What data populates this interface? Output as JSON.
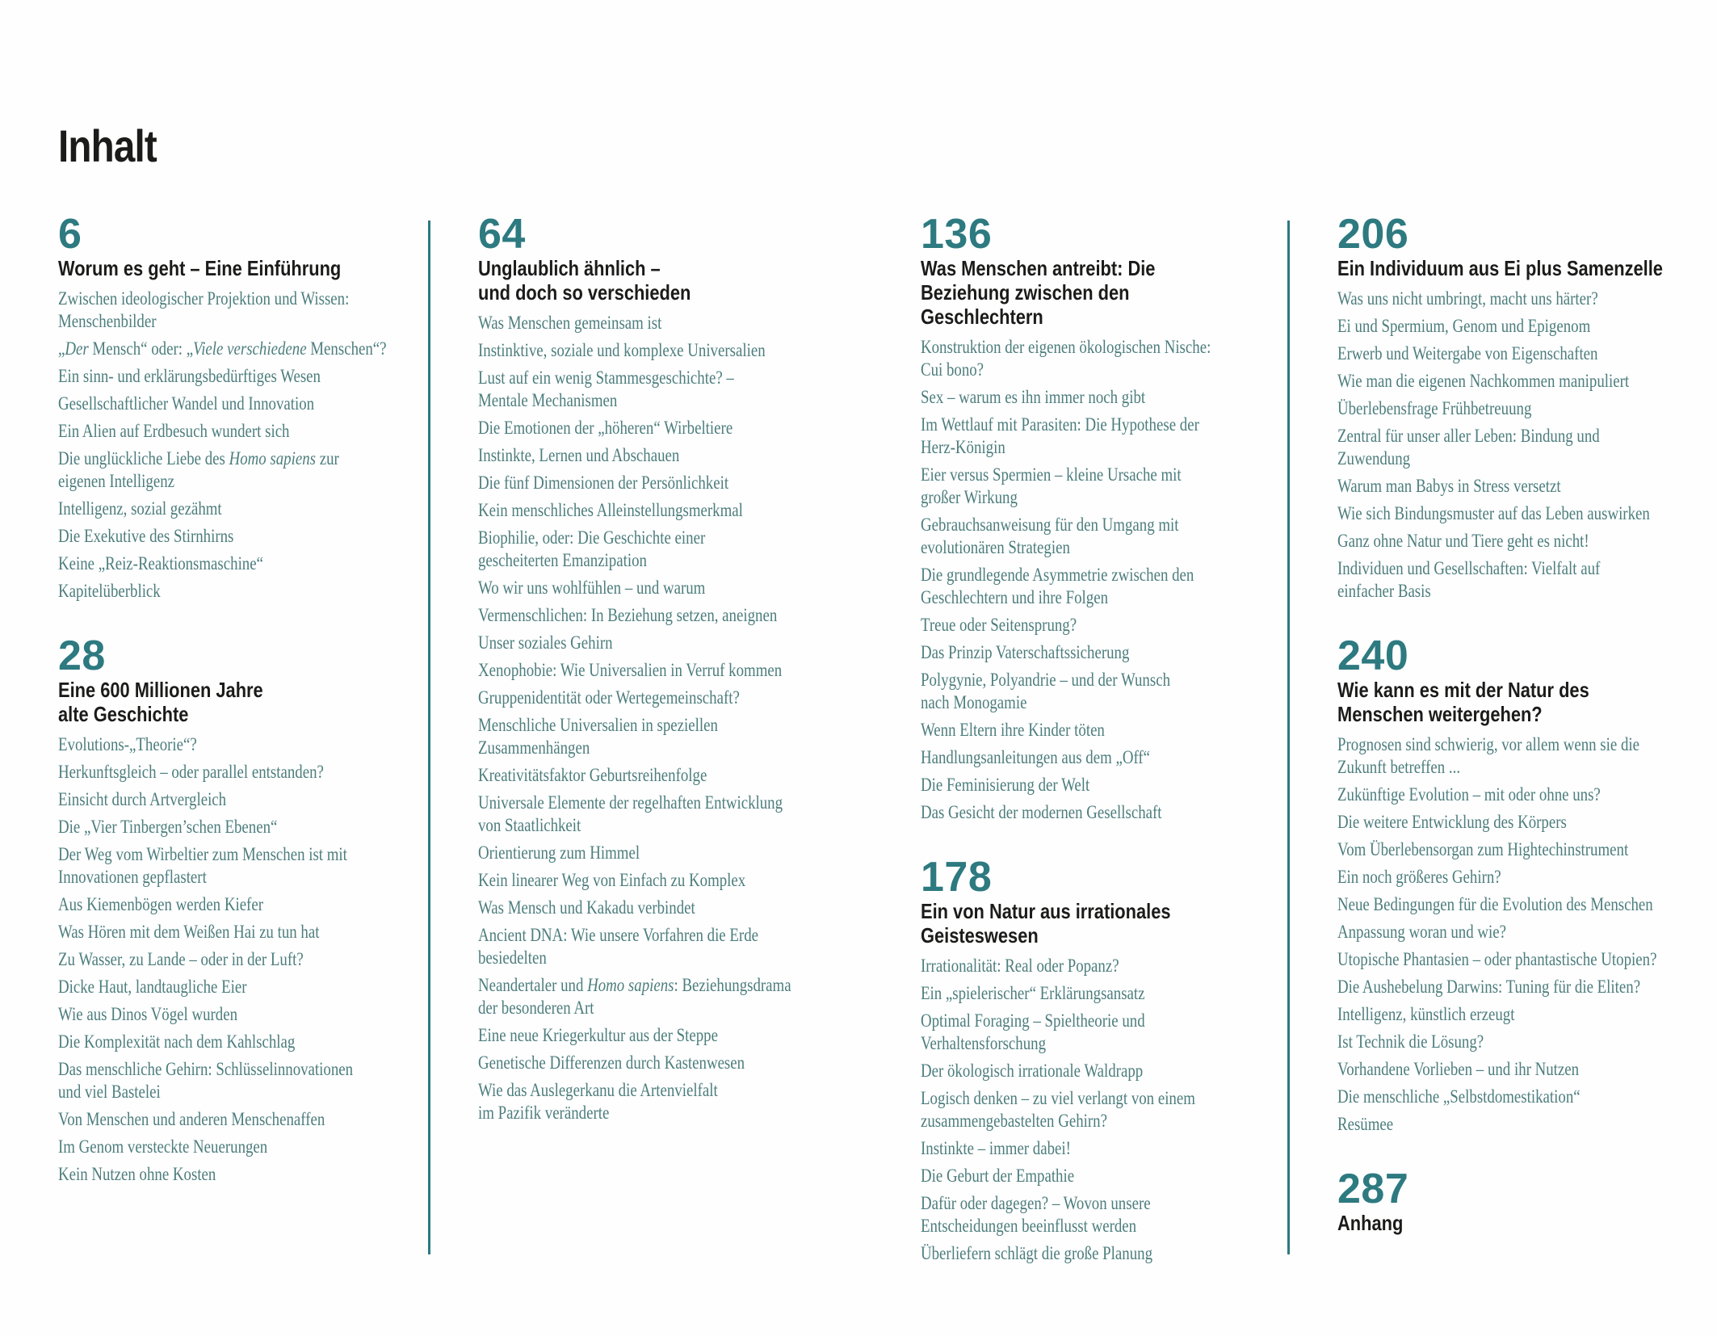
{
  "page": {
    "title": "Inhalt"
  },
  "colors": {
    "accent": "#2d7a80",
    "heading": "#1b1b1a",
    "body_text": "#4d7d7d",
    "background": "#fefefe"
  },
  "columns": [
    {
      "sections": [
        {
          "page_number": "6",
          "heading": "Worum es geht – Eine Einführung",
          "entries": [
            "Zwischen ideologischer Projektion und Wissen:\nMenschenbilder",
            "„*Der* Mensch“ oder: „*Viele verschiedene* Menschen“?",
            "Ein sinn- und erklärungsbedürftiges Wesen",
            "Gesellschaftlicher Wandel und Innovation",
            "Ein Alien auf Erdbesuch wundert sich",
            "Die unglückliche Liebe des *Homo sapiens* zur\neigenen Intelligenz",
            "Intelligenz, sozial gezähmt",
            "Die Exekutive des Stirnhirns",
            "Keine „Reiz-Reaktionsmaschine“",
            "Kapitelüberblick"
          ]
        },
        {
          "page_number": "28",
          "heading": "Eine 600 Millionen Jahre\nalte Geschichte",
          "entries": [
            "Evolutions-„Theorie“?",
            "Herkunftsgleich – oder parallel entstanden?",
            "Einsicht durch Artvergleich",
            "Die „Vier Tinbergen’schen Ebenen“",
            "Der Weg vom Wirbeltier zum Menschen ist mit\nInnovationen gepflastert",
            "Aus Kiemenbögen werden Kiefer",
            "Was Hören mit dem Weißen Hai zu tun hat",
            "Zu Wasser, zu Lande – oder in der Luft?",
            "Dicke Haut, landtaugliche Eier",
            "Wie aus Dinos Vögel wurden",
            "Die Komplexität nach dem Kahlschlag",
            "Das menschliche Gehirn: Schlüsselinnovationen\nund viel Bastelei",
            "Von Menschen und anderen Menschenaffen",
            "Im Genom versteckte Neuerungen",
            "Kein Nutzen ohne Kosten"
          ]
        }
      ]
    },
    {
      "sections": [
        {
          "page_number": "64",
          "heading": "Unglaublich ähnlich –\nund doch so verschieden",
          "entries": [
            "Was Menschen gemeinsam ist",
            "Instinktive, soziale und komplexe Universalien",
            "Lust auf ein wenig Stammesgeschichte? –\nMentale Mechanismen",
            "Die Emotionen der „höheren“ Wirbeltiere",
            "Instinkte, Lernen und Abschauen",
            "Die fünf Dimensionen der Persönlichkeit",
            "Kein menschliches Alleinstellungsmerkmal",
            "Biophilie, oder: Die Geschichte einer\ngescheiterten Emanzipation",
            "Wo wir uns wohlfühlen – und warum",
            "Vermenschlichen: In Beziehung setzen, aneignen",
            "Unser soziales Gehirn",
            "Xenophobie: Wie Universalien in Verruf kommen",
            "Gruppenidentität oder Wertegemeinschaft?",
            "Menschliche Universalien in speziellen\nZusammenhängen",
            "Kreativitätsfaktor Geburtsreihenfolge",
            "Universale Elemente der regelhaften Entwicklung\nvon Staatlichkeit",
            "Orientierung zum Himmel",
            "Kein linearer Weg von Einfach zu Komplex",
            "Was Mensch und Kakadu verbindet",
            "Ancient DNA: Wie unsere Vorfahren die Erde\nbesiedelten",
            "Neandertaler und *Homo sapiens*: Beziehungsdrama\nder besonderen Art",
            "Eine neue Kriegerkultur aus der Steppe",
            "Genetische Differenzen durch Kastenwesen",
            "Wie das Auslegerkanu die Artenvielfalt\nim Pazifik veränderte"
          ]
        }
      ]
    },
    {
      "sections": [
        {
          "page_number": "136",
          "heading": "Was Menschen antreibt: Die\nBeziehung zwischen den\nGeschlechtern",
          "entries": [
            "Konstruktion der eigenen ökologischen Nische:\nCui bono?",
            "Sex – warum es ihn immer noch gibt",
            "Im Wettlauf mit Parasiten: Die Hypothese der\nHerz-Königin",
            "Eier versus Spermien – kleine Ursache mit\ngroßer Wirkung",
            "Gebrauchsanweisung für den Umgang mit\nevolutionären Strategien",
            "Die grundlegende Asymmetrie zwischen den\nGeschlechtern und ihre Folgen",
            "Treue oder Seitensprung?",
            "Das Prinzip Vaterschaftssicherung",
            "Polygynie, Polyandrie – und der Wunsch\nnach Monogamie",
            "Wenn Eltern ihre Kinder töten",
            "Handlungsanleitungen aus dem „Off“",
            "Die Feminisierung der Welt",
            "Das Gesicht der modernen Gesellschaft"
          ]
        },
        {
          "page_number": "178",
          "heading": "Ein von Natur aus irrationales\nGeisteswesen",
          "entries": [
            "Irrationalität: Real oder Popanz?",
            "Ein „spielerischer“ Erklärungsansatz",
            "Optimal Foraging – Spieltheorie und\nVerhaltensforschung",
            "Der ökologisch irrationale Waldrapp",
            "Logisch denken – zu viel verlangt von einem\nzusammengebastelten Gehirn?",
            "Instinkte – immer dabei!",
            "Die Geburt der Empathie",
            "Dafür oder dagegen? – Wovon unsere\nEntscheidungen beeinflusst werden",
            "Überliefern schlägt die große Planung"
          ]
        }
      ]
    },
    {
      "sections": [
        {
          "page_number": "206",
          "heading": "Ein Individuum aus Ei plus Samenzelle",
          "entries": [
            "Was uns nicht umbringt, macht uns härter?",
            "Ei und Spermium, Genom und Epigenom",
            "Erwerb und Weitergabe von Eigenschaften",
            "Wie man die eigenen Nachkommen manipuliert",
            "Überlebensfrage Frühbetreuung",
            "Zentral für unser aller Leben: Bindung und\nZuwendung",
            "Warum man Babys in Stress versetzt",
            "Wie sich Bindungsmuster auf das Leben auswirken",
            "Ganz ohne Natur und Tiere geht es nicht!",
            "Individuen und Gesellschaften: Vielfalt auf\neinfacher Basis"
          ]
        },
        {
          "page_number": "240",
          "heading": "Wie kann es mit der Natur des\nMenschen weitergehen?",
          "entries": [
            "Prognosen sind schwierig, vor allem wenn sie die\nZukunft betreffen ...",
            "Zukünftige Evolution – mit oder ohne uns?",
            "Die weitere Entwicklung des Körpers",
            "Vom Überlebensorgan zum Hightechinstrument",
            "Ein noch größeres Gehirn?",
            "Neue Bedingungen für die Evolution des Menschen",
            "Anpassung woran und wie?",
            "Utopische Phantasien – oder phantastische Utopien?",
            "Die Aushebelung Darwins: Tuning für die Eliten?",
            "Intelligenz, künstlich erzeugt",
            "Ist Technik die Lösung?",
            "Vorhandene Vorlieben – und ihr Nutzen",
            "Die menschliche „Selbstdomestikation“",
            "Resümee"
          ]
        },
        {
          "page_number": "287",
          "heading": "Anhang",
          "entries": []
        }
      ]
    }
  ]
}
